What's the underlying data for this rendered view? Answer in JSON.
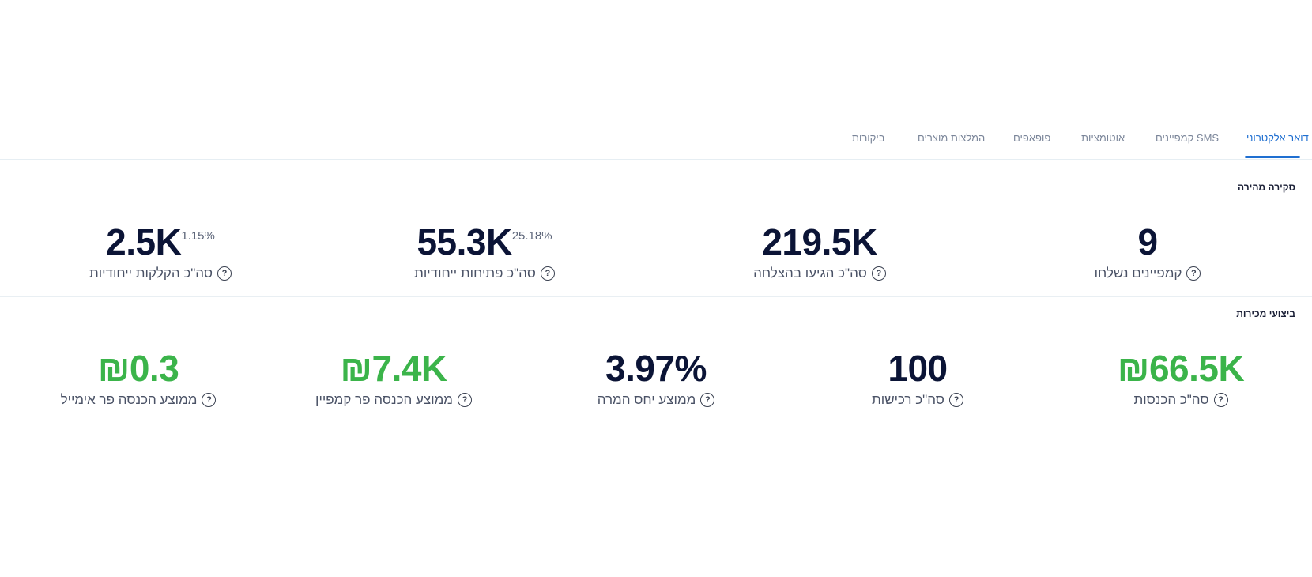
{
  "tabs": [
    {
      "label": "דואר אלקטרוני",
      "active": true
    },
    {
      "label": "קמפיינים SMS",
      "active": false
    },
    {
      "label": "אוטומציות",
      "active": false
    },
    {
      "label": "פופאפים",
      "active": false
    },
    {
      "label": "המלצות מוצרים",
      "active": false
    },
    {
      "label": "ביקורות",
      "active": false
    }
  ],
  "quick_overview": {
    "title": "סקירה מהירה",
    "stats": [
      {
        "value": "9",
        "label": "קמפיינים נשלחו"
      },
      {
        "value": "219.5K",
        "label": "סה\"כ הגיעו בהצלחה"
      },
      {
        "value": "55.3K",
        "pct": "25.18%",
        "label": "סה\"כ פתיחות ייחודיות"
      },
      {
        "value": "2.5K",
        "pct": "1.15%",
        "label": "סה\"כ הקלקות ייחודיות"
      }
    ]
  },
  "sales_performance": {
    "title": "ביצועי מכירות",
    "stats": [
      {
        "value": "₪66.5K",
        "label": "סה\"כ הכנסות"
      },
      {
        "value": "100",
        "label": "סה\"כ רכישות"
      },
      {
        "value": "3.97%",
        "label": "ממוצע יחס המרה"
      },
      {
        "value": "₪7.4K",
        "label": "ממוצע הכנסה פר קמפיין"
      },
      {
        "value": "₪0.3",
        "label": "ממוצע הכנסה פר אימייל"
      }
    ]
  },
  "colors": {
    "accent": "#1f6fd1",
    "positive": "#3bb44a",
    "value_dark": "#0b1436"
  },
  "help_icon_glyph": "?"
}
